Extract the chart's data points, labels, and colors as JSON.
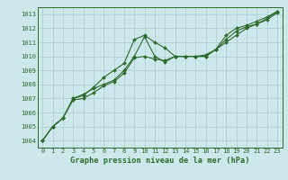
{
  "title": "Graphe pression niveau de la mer (hPa)",
  "bg_color": "#cce8ea",
  "grid_color": "#aacccc",
  "line_color": "#2d6a2d",
  "x_ticks": [
    0,
    1,
    2,
    3,
    4,
    5,
    6,
    7,
    8,
    9,
    10,
    11,
    12,
    13,
    14,
    15,
    16,
    17,
    18,
    19,
    20,
    21,
    22,
    23
  ],
  "ylim": [
    1003.5,
    1013.5
  ],
  "y_ticks": [
    1004,
    1005,
    1006,
    1007,
    1008,
    1009,
    1010,
    1011,
    1012,
    1013
  ],
  "series1": [
    1004.0,
    1005.0,
    1005.6,
    1007.0,
    1007.2,
    1007.8,
    1008.5,
    1009.0,
    1009.5,
    1011.2,
    1011.5,
    1011.0,
    1010.6,
    1010.0,
    1010.0,
    1010.0,
    1010.0,
    1010.5,
    1011.5,
    1012.0,
    1012.2,
    1012.5,
    1012.8,
    1013.2
  ],
  "series2": [
    1004.0,
    1005.0,
    1005.6,
    1007.0,
    1007.3,
    1007.7,
    1008.0,
    1008.3,
    1009.0,
    1010.0,
    1011.4,
    1010.0,
    1009.6,
    1010.0,
    1010.0,
    1010.0,
    1010.0,
    1010.5,
    1011.0,
    1011.5,
    1012.0,
    1012.3,
    1012.7,
    1013.2
  ],
  "series3": [
    1004.0,
    1005.0,
    1005.6,
    1006.9,
    1007.0,
    1007.4,
    1007.9,
    1008.2,
    1008.8,
    1009.9,
    1010.0,
    1009.8,
    1009.7,
    1010.0,
    1010.0,
    1010.0,
    1010.1,
    1010.5,
    1011.2,
    1011.8,
    1012.1,
    1012.3,
    1012.6,
    1013.1
  ],
  "tick_fontsize": 5.0,
  "xlabel_fontsize": 6.2,
  "marker_size": 2.0,
  "line_width": 0.8
}
